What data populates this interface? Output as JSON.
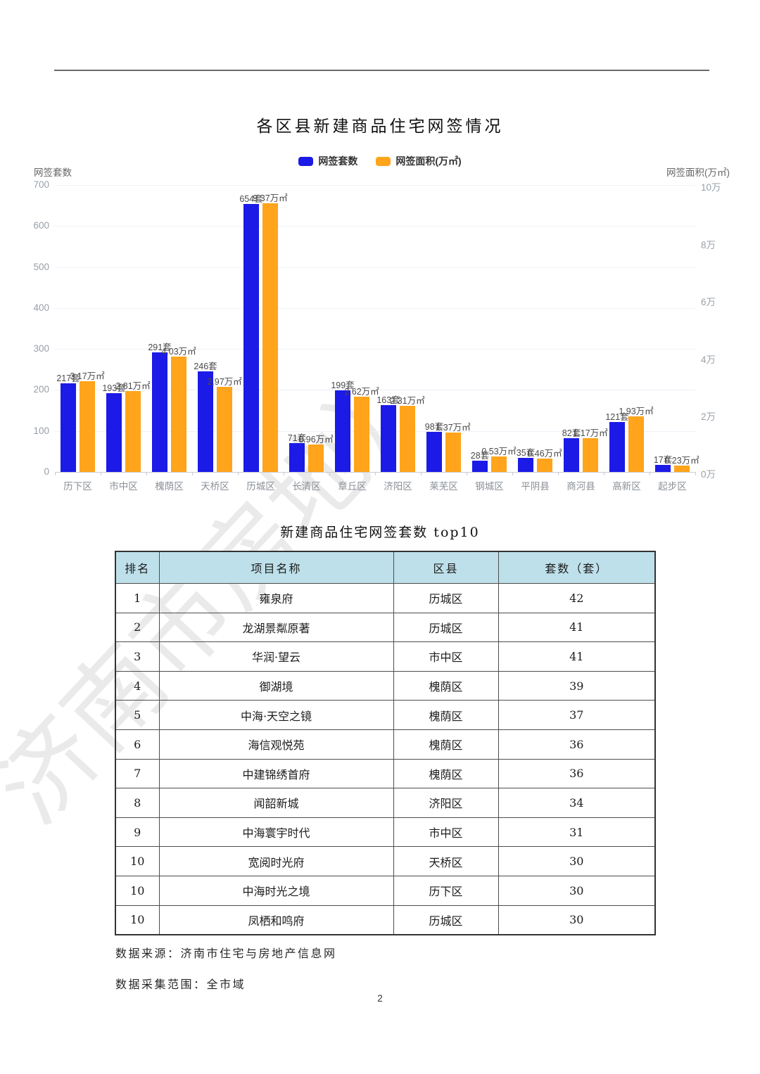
{
  "page": {
    "number": "2"
  },
  "watermark": {
    "text": "济南市房地）"
  },
  "chart": {
    "title": "各区县新建商品住宅网签情况",
    "legend": [
      {
        "label": "网签套数",
        "color": "#1b1ae6"
      },
      {
        "label": "网签面积(万㎡)",
        "color": "#ffa41b"
      }
    ],
    "left_axis_title": "网签套数",
    "right_axis_title": "网签面积(万㎡)"
  },
  "chart_data": {
    "type": "bar",
    "title": "各区县新建商品住宅网签情况",
    "categories": [
      "历下区",
      "市中区",
      "槐荫区",
      "天桥区",
      "历城区",
      "长清区",
      "章丘区",
      "济阳区",
      "莱芜区",
      "钢城区",
      "平阴县",
      "商河县",
      "高新区",
      "起步区"
    ],
    "series": [
      {
        "name": "网签套数",
        "axis": "left",
        "unit": "套",
        "color": "#1b1ae6",
        "values": [
          217,
          193,
          291,
          246,
          654,
          71,
          199,
          163,
          98,
          28,
          35,
          82,
          121,
          17
        ]
      },
      {
        "name": "网签面积(万㎡)",
        "axis": "right",
        "unit": "万㎡",
        "color": "#ffa41b",
        "values": [
          3.17,
          2.81,
          4.03,
          2.97,
          9.37,
          0.96,
          2.62,
          2.31,
          1.37,
          0.53,
          0.46,
          1.17,
          1.93,
          0.23
        ]
      }
    ],
    "left_axis": {
      "title": "网签套数",
      "ticks": [
        0,
        100,
        200,
        300,
        400,
        500,
        600,
        700
      ],
      "max": 700
    },
    "right_axis": {
      "title": "网签面积(万㎡)",
      "ticks": [
        "0万",
        "2万",
        "4万",
        "6万",
        "8万",
        "10万"
      ],
      "max": 10
    },
    "legend_position": "top",
    "grid": true
  },
  "table": {
    "title": "新建商品住宅网签套数 top10",
    "headers": [
      "排名",
      "项目名称",
      "区县",
      "套数（套）"
    ],
    "rows": [
      [
        "1",
        "雍泉府",
        "历城区",
        "42"
      ],
      [
        "2",
        "龙湖景粼原著",
        "历城区",
        "41"
      ],
      [
        "3",
        "华润·望云",
        "市中区",
        "41"
      ],
      [
        "4",
        "御湖境",
        "槐荫区",
        "39"
      ],
      [
        "5",
        "中海·天空之镜",
        "槐荫区",
        "37"
      ],
      [
        "6",
        "海信观悦苑",
        "槐荫区",
        "36"
      ],
      [
        "7",
        "中建锦绣首府",
        "槐荫区",
        "36"
      ],
      [
        "8",
        "闻韶新城",
        "济阳区",
        "34"
      ],
      [
        "9",
        "中海寰宇时代",
        "市中区",
        "31"
      ],
      [
        "10",
        "宽阅时光府",
        "天桥区",
        "30"
      ],
      [
        "10",
        "中海时光之境",
        "历下区",
        "30"
      ],
      [
        "10",
        "凤栖和鸣府",
        "历城区",
        "30"
      ]
    ]
  },
  "footer": {
    "lines": [
      "数据来源：济南市住宅与房地产信息网",
      "数据采集范围：全市域"
    ]
  }
}
